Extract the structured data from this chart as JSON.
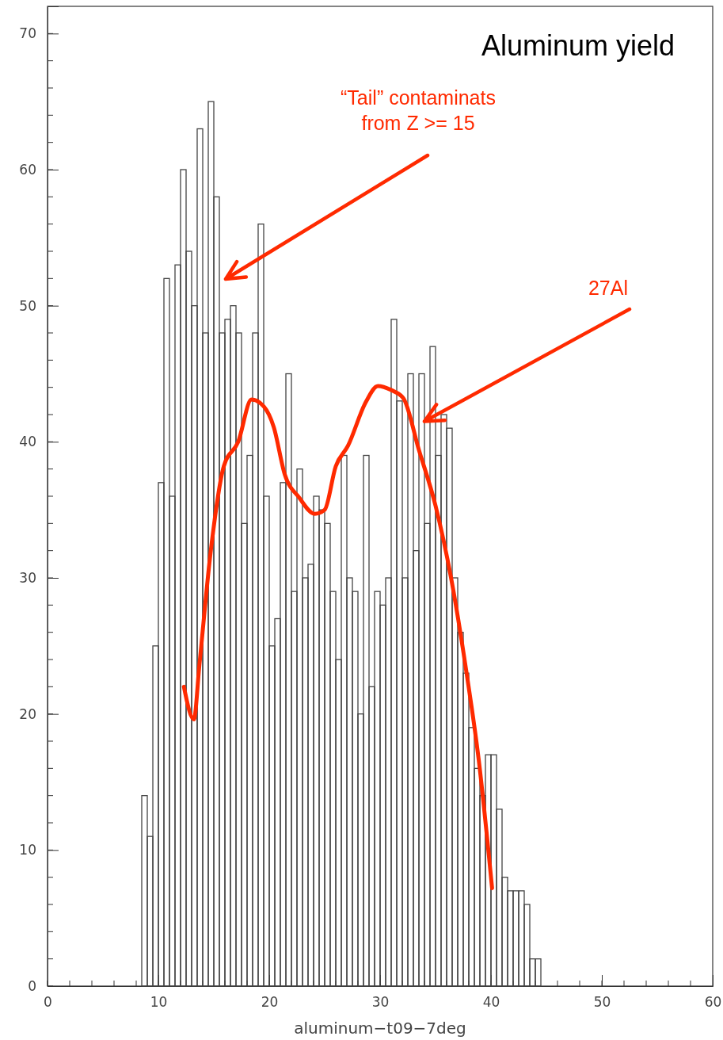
{
  "chart_data": {
    "type": "histogram",
    "title": "Aluminum yield",
    "xlabel": "aluminum−t09−7deg",
    "bins": [
      8.5,
      9,
      9.5,
      10,
      10.5,
      11,
      11.5,
      12,
      12.5,
      13,
      13.5,
      14,
      14.5,
      15,
      15.5,
      16,
      16.5,
      17,
      17.5,
      18,
      18.5,
      19,
      19.5,
      20,
      20.5,
      21,
      21.5,
      22,
      22.5,
      23,
      23.5,
      24,
      24.5,
      25,
      25.5,
      26,
      26.5,
      27,
      27.5,
      28,
      28.5,
      29,
      29.5,
      30,
      30.5,
      31,
      31.5,
      32,
      32.5,
      33,
      33.5,
      34,
      34.5,
      35,
      35.5,
      36,
      36.5,
      37,
      37.5,
      38,
      38.5,
      39,
      39.5,
      40,
      40.5,
      41,
      41.5,
      42,
      42.5,
      43,
      43.5,
      44,
      44.5
    ],
    "series": [
      {
        "color": "#444444",
        "values": [
          14,
          11,
          25,
          37,
          52,
          36,
          53,
          60,
          54,
          50,
          63,
          48,
          65,
          58,
          48,
          49,
          50,
          48,
          34,
          39,
          48,
          56,
          36,
          25,
          27,
          37,
          45,
          29,
          38,
          30,
          31,
          36,
          35,
          34,
          29,
          24,
          39,
          30,
          29,
          20,
          39,
          22,
          29,
          28,
          30,
          49,
          43,
          30,
          45,
          32,
          45,
          34,
          47,
          39,
          42,
          41,
          30,
          26,
          23,
          19,
          16,
          14,
          17,
          17,
          13,
          8,
          7,
          7,
          7,
          6,
          2,
          2
        ]
      },
      {
        "type": "line",
        "color": "#ff2a00",
        "x": [
          12.3,
          13.2,
          13.7,
          14.7,
          15.9,
          17.2,
          18.4,
          19.5,
          20.4,
          21.4,
          22.7,
          24.1,
          25,
          26,
          27.1,
          28.7,
          29.8,
          31,
          32.1,
          33.5,
          35,
          36.4,
          37.8,
          38.9,
          40.1
        ],
        "values": [
          22,
          19.6,
          23.6,
          31.8,
          38.2,
          40,
          43.1,
          42.6,
          41.1,
          37.6,
          35.9,
          34.7,
          35,
          38.2,
          39.7,
          42.9,
          44.1,
          43.8,
          43.2,
          39.4,
          35.3,
          30,
          23,
          16.6,
          7.2
        ]
      }
    ],
    "xlim": [
      0,
      60
    ],
    "xticks": [
      0,
      10,
      20,
      30,
      40,
      50,
      60
    ],
    "ylim": [
      0,
      72
    ],
    "yticks": [
      0,
      10,
      20,
      30,
      40,
      50,
      60,
      70
    ],
    "grid": false,
    "annotations": [
      "“Tail” contaminats\nfrom Z >= 15",
      {
        "text": "27Al",
        "x": 34,
        "y": 41.5
      }
    ]
  }
}
